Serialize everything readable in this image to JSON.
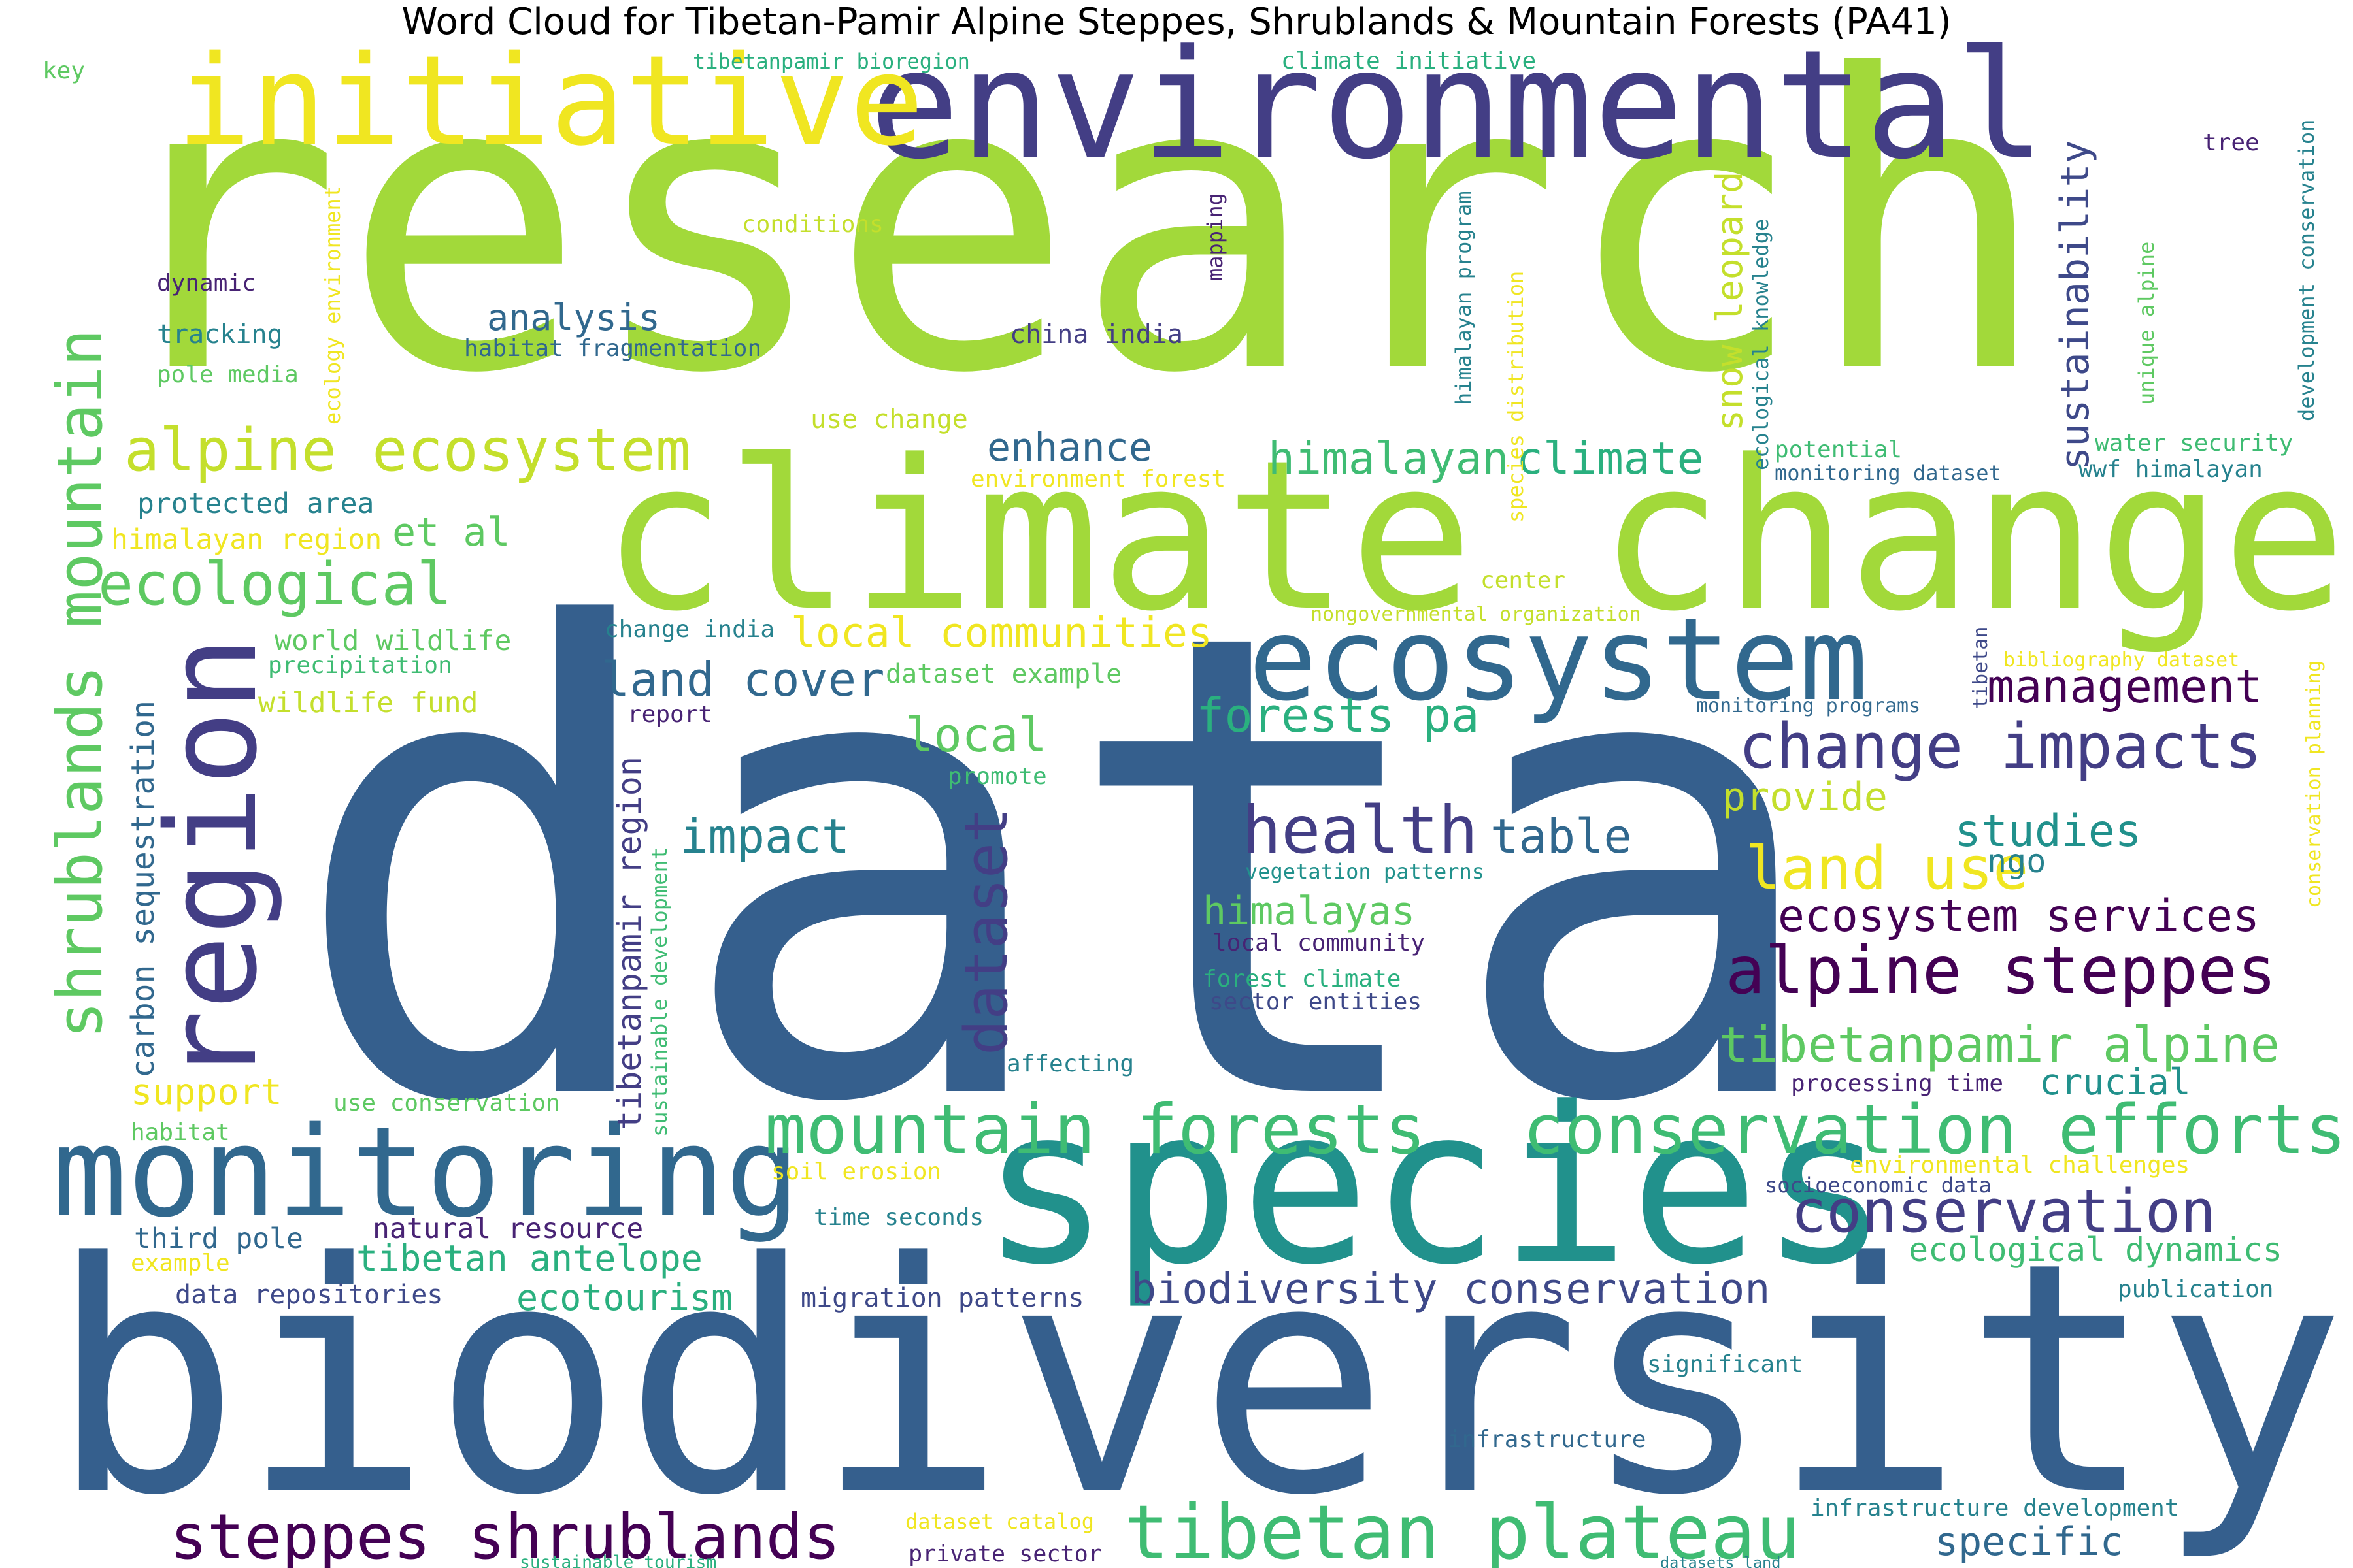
{
  "title": "Word Cloud for Tibetan-Pamir Alpine Steppes, Shrublands & Mountain Forests (PA41)",
  "palette": {
    "lime": "#a2d93a",
    "yellow_green": "#c4df2c",
    "yellow": "#f0e621",
    "blue": "#355f8d",
    "navy": "#433e85",
    "purple": "#482374",
    "dark_purple": "#440154",
    "teal": "#26828e",
    "teal2": "#21918c",
    "green": "#3fbc73",
    "light_green": "#5ec962",
    "aqua": "#2ab07f",
    "steel": "#31688e",
    "cobalt": "#3e4989"
  },
  "words": [
    {
      "text": "research",
      "color": "lime"
    },
    {
      "text": "data",
      "color": "blue"
    },
    {
      "text": "biodiversity",
      "color": "blue"
    },
    {
      "text": "climate change",
      "color": "lime"
    },
    {
      "text": "environmental",
      "color": "navy"
    },
    {
      "text": "species",
      "color": "teal2"
    },
    {
      "text": "initiative",
      "color": "yellow"
    },
    {
      "text": "ecosystem",
      "color": "steel"
    },
    {
      "text": "monitoring",
      "color": "steel"
    },
    {
      "text": "region",
      "color": "navy"
    },
    {
      "text": "mountain forests",
      "color": "green"
    },
    {
      "text": "conservation efforts",
      "color": "green"
    },
    {
      "text": "tibetan plateau",
      "color": "green"
    },
    {
      "text": "steppes shrublands",
      "color": "dark_purple"
    },
    {
      "text": "alpine ecosystem",
      "color": "yellow_green"
    },
    {
      "text": "ecological",
      "color": "light_green"
    },
    {
      "text": "shrublands mountain",
      "color": "light_green"
    },
    {
      "text": "change impacts",
      "color": "navy"
    },
    {
      "text": "alpine steppes",
      "color": "dark_purple"
    },
    {
      "text": "health",
      "color": "navy"
    },
    {
      "text": "land use",
      "color": "yellow"
    },
    {
      "text": "conservation",
      "color": "navy"
    },
    {
      "text": "tibetanpamir alpine",
      "color": "light_green"
    },
    {
      "text": "ecosystem services",
      "color": "dark_purple"
    },
    {
      "text": "dataset",
      "color": "navy"
    },
    {
      "text": "biodiversity conservation",
      "color": "cobalt"
    },
    {
      "text": "management",
      "color": "dark_purple"
    },
    {
      "text": "local communities",
      "color": "yellow"
    },
    {
      "text": "land cover",
      "color": "steel"
    },
    {
      "text": "forests pa",
      "color": "aqua"
    },
    {
      "text": "local",
      "color": "light_green"
    },
    {
      "text": "impact",
      "color": "teal"
    },
    {
      "text": "table",
      "color": "steel"
    },
    {
      "text": "studies",
      "color": "teal2"
    },
    {
      "text": "himalayas",
      "color": "light_green"
    },
    {
      "text": "himalayan",
      "color": "green"
    },
    {
      "text": "climate",
      "color": "aqua"
    },
    {
      "text": "analysis",
      "color": "steel"
    },
    {
      "text": "enhance",
      "color": "steel"
    },
    {
      "text": "et al",
      "color": "light_green"
    },
    {
      "text": "sustainability",
      "color": "cobalt"
    },
    {
      "text": "snow leopard",
      "color": "yellow_green"
    },
    {
      "text": "carbon sequestration",
      "color": "steel"
    },
    {
      "text": "tibetan antelope",
      "color": "aqua"
    },
    {
      "text": "ecotourism",
      "color": "aqua"
    },
    {
      "text": "specific",
      "color": "steel"
    },
    {
      "text": "support",
      "color": "yellow"
    },
    {
      "text": "crucial",
      "color": "teal2"
    },
    {
      "text": "provide",
      "color": "yellow_green"
    },
    {
      "text": "ecological dynamics",
      "color": "green"
    },
    {
      "text": "ngo",
      "color": "teal"
    },
    {
      "text": "tibetanpamir region",
      "color": "navy"
    },
    {
      "text": "protected area",
      "color": "teal"
    },
    {
      "text": "natural resource",
      "color": "purple"
    },
    {
      "text": "third pole",
      "color": "steel"
    },
    {
      "text": "world wildlife",
      "color": "light_green"
    },
    {
      "text": "wildlife fund",
      "color": "yellow_green"
    },
    {
      "text": "himalayan region",
      "color": "yellow"
    },
    {
      "text": "precipitation",
      "color": "green"
    },
    {
      "text": "tracking",
      "color": "teal"
    },
    {
      "text": "pole media",
      "color": "light_green"
    },
    {
      "text": "habitat fragmentation",
      "color": "steel"
    },
    {
      "text": "dynamic",
      "color": "purple"
    },
    {
      "text": "conditions",
      "color": "yellow_green"
    },
    {
      "text": "china india",
      "color": "navy"
    },
    {
      "text": "use change",
      "color": "yellow_green"
    },
    {
      "text": "environment forest",
      "color": "yellow"
    },
    {
      "text": "change india",
      "color": "teal"
    },
    {
      "text": "dataset example",
      "color": "light_green"
    },
    {
      "text": "report",
      "color": "purple"
    },
    {
      "text": "promote",
      "color": "green"
    },
    {
      "text": "affecting",
      "color": "teal"
    },
    {
      "text": "use conservation",
      "color": "light_green"
    },
    {
      "text": "habitat",
      "color": "light_green"
    },
    {
      "text": "example",
      "color": "yellow"
    },
    {
      "text": "data repositories",
      "color": "cobalt"
    },
    {
      "text": "migration patterns",
      "color": "cobalt"
    },
    {
      "text": "time seconds",
      "color": "teal"
    },
    {
      "text": "soil erosion",
      "color": "yellow"
    },
    {
      "text": "vegetation patterns",
      "color": "teal2"
    },
    {
      "text": "local community",
      "color": "purple"
    },
    {
      "text": "forest climate",
      "color": "aqua"
    },
    {
      "text": "sector entities",
      "color": "cobalt"
    },
    {
      "text": "processing time",
      "color": "purple"
    },
    {
      "text": "environmental challenges",
      "color": "yellow"
    },
    {
      "text": "socioeconomic data",
      "color": "cobalt"
    },
    {
      "text": "publication",
      "color": "teal"
    },
    {
      "text": "significant",
      "color": "teal"
    },
    {
      "text": "infrastructure",
      "color": "steel"
    },
    {
      "text": "infrastructure development",
      "color": "teal"
    },
    {
      "text": "dataset catalog",
      "color": "yellow"
    },
    {
      "text": "private sector",
      "color": "purple"
    },
    {
      "text": "sustainable tourism",
      "color": "aqua"
    },
    {
      "text": "datasets land",
      "color": "teal"
    },
    {
      "text": "key",
      "color": "light_green"
    },
    {
      "text": "tibetanpamir bioregion",
      "color": "aqua"
    },
    {
      "text": "climate initiative",
      "color": "aqua"
    },
    {
      "text": "tree",
      "color": "purple"
    },
    {
      "text": "ecology environment",
      "color": "yellow"
    },
    {
      "text": "mapping",
      "color": "purple"
    },
    {
      "text": "himalayan program",
      "color": "teal"
    },
    {
      "text": "species distribution",
      "color": "yellow"
    },
    {
      "text": "ecological knowledge",
      "color": "teal"
    },
    {
      "text": "unique alpine",
      "color": "light_green"
    },
    {
      "text": "development conservation",
      "color": "teal"
    },
    {
      "text": "potential",
      "color": "green"
    },
    {
      "text": "monitoring dataset",
      "color": "steel"
    },
    {
      "text": "water security",
      "color": "green"
    },
    {
      "text": "wwf himalayan",
      "color": "teal"
    },
    {
      "text": "center",
      "color": "yellow_green"
    },
    {
      "text": "nongovernmental organization",
      "color": "yellow_green"
    },
    {
      "text": "bibliography dataset",
      "color": "yellow"
    },
    {
      "text": "monitoring programs",
      "color": "steel"
    },
    {
      "text": "tibetan",
      "color": "cobalt"
    },
    {
      "text": "conservation planning",
      "color": "yellow"
    },
    {
      "text": "sustainable development",
      "color": "green"
    }
  ]
}
